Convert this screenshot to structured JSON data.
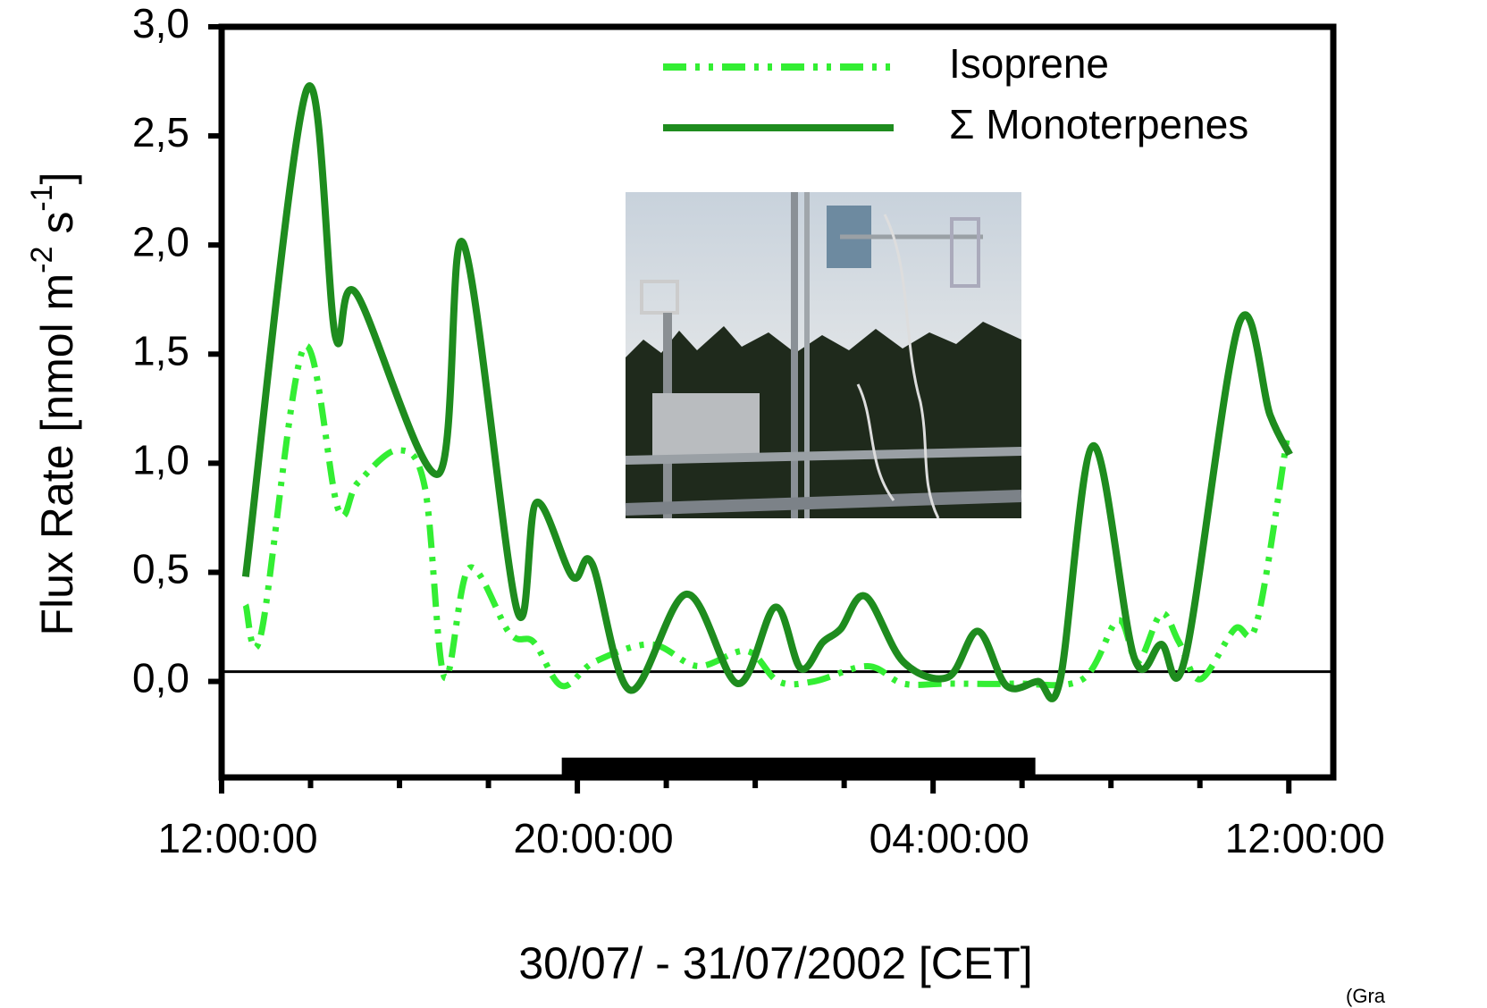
{
  "chart_data": {
    "type": "line",
    "ylabel": [
      {
        "text": "Flux Rate [nmol m"
      },
      {
        "text": "-2",
        "sup": true
      },
      {
        "text": " s"
      },
      {
        "text": "-1",
        "sup": true
      },
      {
        "text": "]"
      }
    ],
    "xlabel": "30/07/ - 31/07/2002 [CET]",
    "annotation": "(Gra",
    "xlim": [
      0,
      25
    ],
    "xticks": [
      {
        "value": 0,
        "label": "12:00:00"
      },
      {
        "value": 8,
        "label": "20:00:00"
      },
      {
        "value": 16,
        "label": "04:00:00"
      },
      {
        "value": 24,
        "label": "12:00:00"
      }
    ],
    "minor_xticks": [
      2,
      4,
      6,
      10,
      12,
      14,
      18,
      20,
      22
    ],
    "ylim": [
      -0.44,
      3.0
    ],
    "yticks": [
      {
        "value": 0,
        "label": "0,0"
      },
      {
        "value": 0.5,
        "label": "0,5"
      },
      {
        "value": 1,
        "label": "1,0"
      },
      {
        "value": 1.5,
        "label": "1,5"
      },
      {
        "value": 2,
        "label": "2,0"
      },
      {
        "value": 2.5,
        "label": "2,5"
      },
      {
        "value": 3,
        "label": "3,0"
      }
    ],
    "reference_line": 0.045,
    "night_bar": {
      "start": 7.65,
      "end": 18.3,
      "y": -0.39
    },
    "legend": "upper right",
    "series": [
      {
        "name": "Isoprene",
        "color": "#33ee33",
        "line_style": "dash-dot-dot",
        "x": [
          0.54,
          0.89,
          1.85,
          2.62,
          3.06,
          3.96,
          4.57,
          5.01,
          5.57,
          6.48,
          7.02,
          7.65,
          8.39,
          9.66,
          10.71,
          11.81,
          12.52,
          13.32,
          14.53,
          15.33,
          16.34,
          17.85,
          19.36,
          20.16,
          20.6,
          21.13,
          21.53,
          22.01,
          22.78,
          23.28,
          23.98
        ],
        "values": [
          0.35,
          0.22,
          1.53,
          0.79,
          0.91,
          1.06,
          0.89,
          0.02,
          0.52,
          0.22,
          0.18,
          -0.02,
          0.09,
          0.17,
          0.07,
          0.14,
          0.0,
          0.0,
          0.07,
          -0.01,
          -0.01,
          -0.01,
          0.01,
          0.28,
          0.09,
          0.31,
          0.18,
          0.01,
          0.24,
          0.27,
          1.14
        ]
      },
      {
        "name": "Σ Monoterpenes",
        "color": "#1e8c1e",
        "line_style": "solid",
        "x": [
          0.54,
          1.91,
          2.56,
          3.02,
          4.87,
          5.43,
          6.64,
          7.08,
          7.89,
          8.33,
          9.19,
          10.46,
          11.61,
          12.45,
          13.02,
          13.52,
          13.92,
          14.48,
          15.33,
          16.34,
          17.01,
          17.65,
          18.35,
          18.85,
          19.6,
          20.52,
          21.13,
          21.67,
          22.88,
          23.58,
          24.02
        ],
        "values": [
          0.48,
          2.71,
          1.58,
          1.78,
          0.95,
          2.01,
          0.33,
          0.82,
          0.48,
          0.54,
          -0.04,
          0.4,
          -0.01,
          0.34,
          0.06,
          0.18,
          0.24,
          0.39,
          0.09,
          0.02,
          0.23,
          -0.02,
          0.0,
          0.0,
          1.08,
          0.11,
          0.17,
          0.11,
          1.64,
          1.22,
          1.04
        ]
      }
    ]
  }
}
